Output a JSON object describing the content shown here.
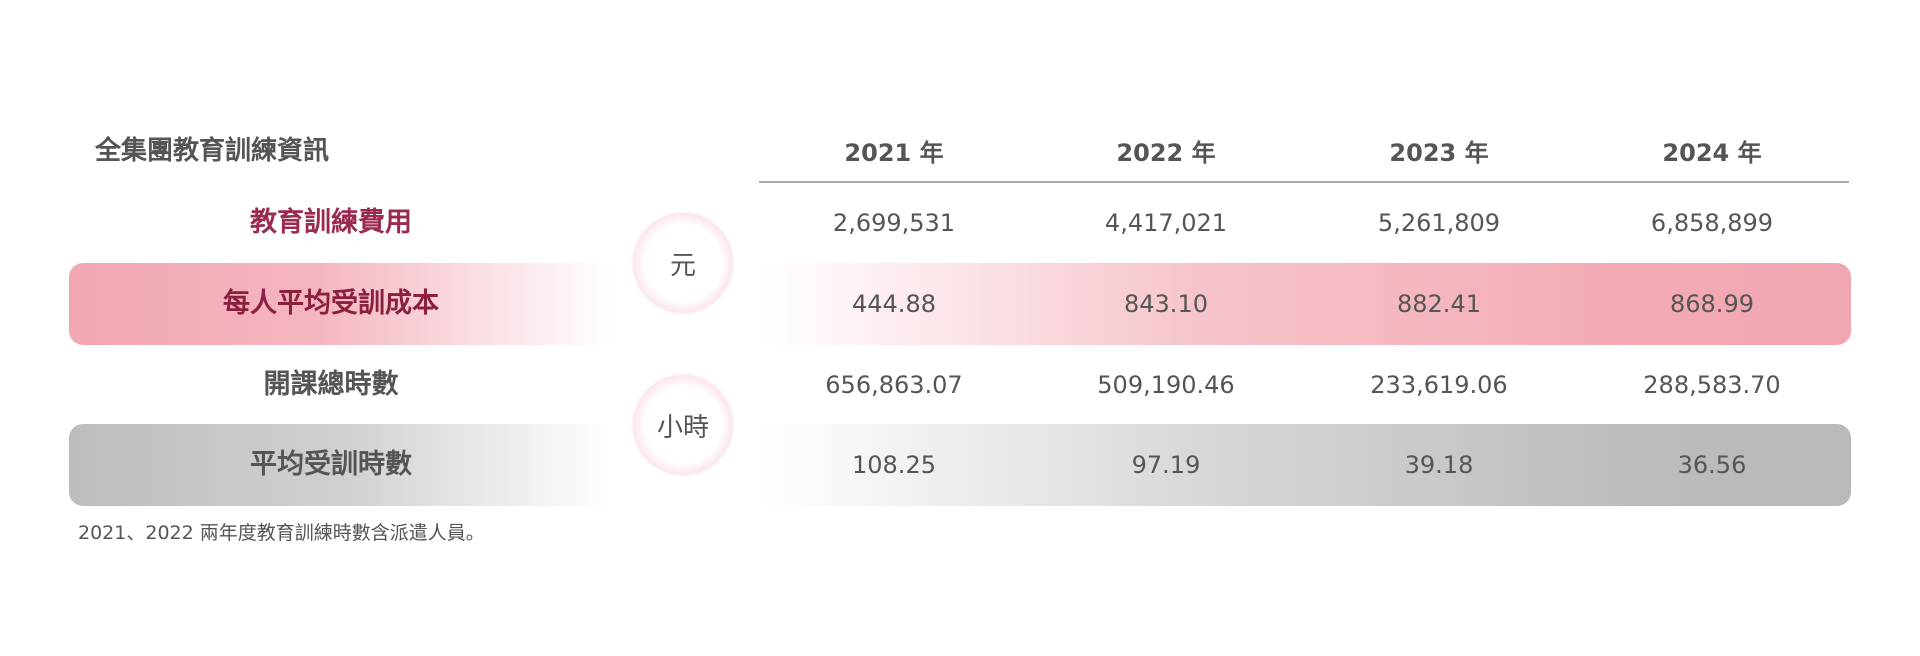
{
  "table": {
    "title": "全集團教育訓練資訊",
    "columns": [
      "2021 年",
      "2022 年",
      "2023 年",
      "2024 年"
    ],
    "rows": [
      {
        "label": "教育訓練費用",
        "values": [
          "2,699,531",
          "4,417,021",
          "5,261,809",
          "6,858,899"
        ]
      },
      {
        "label": "每人平均受訓成本",
        "values": [
          "444.88",
          "843.10",
          "882.41",
          "868.99"
        ]
      },
      {
        "label": "開課總時數",
        "values": [
          "656,863.07",
          "509,190.46",
          "233,619.06",
          "288,583.70"
        ]
      },
      {
        "label": "平均受訓時數",
        "values": [
          "108.25",
          "97.19",
          "39.18",
          "36.56"
        ]
      }
    ],
    "units": [
      "元",
      "小時"
    ],
    "footnote": "2021、2022 兩年度教育訓練時數含派遣人員。"
  }
}
